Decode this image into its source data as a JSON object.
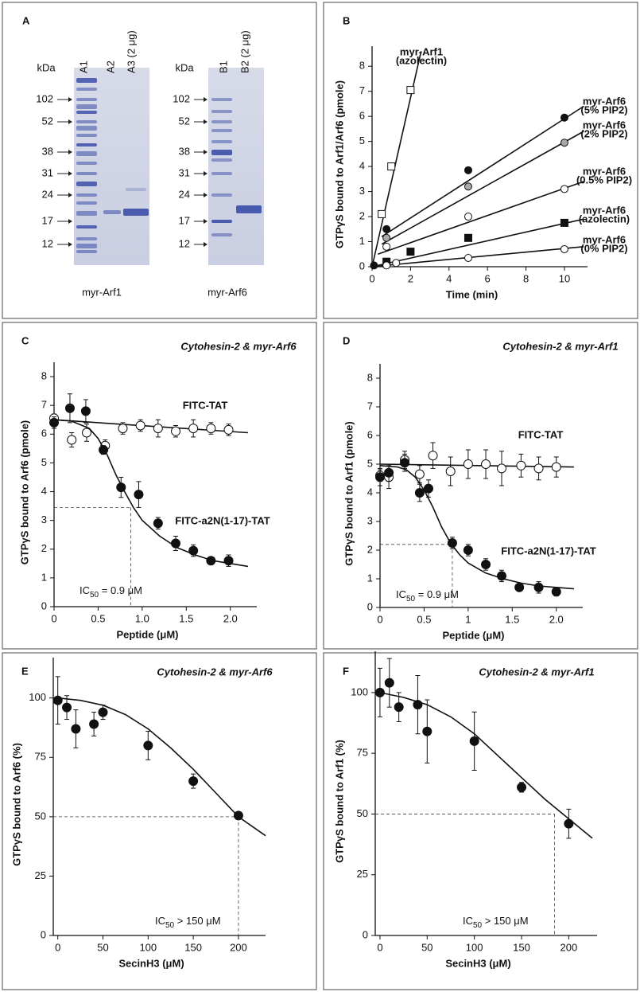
{
  "gel": {
    "label": "A",
    "gels": [
      {
        "unit": "kDa",
        "lanes": [
          "A1",
          "A2",
          "A3 (2 μg)"
        ],
        "markers": [
          102,
          52,
          38,
          31,
          24,
          17,
          12
        ],
        "caption": "myr-Arf1"
      },
      {
        "unit": "kDa",
        "lanes": [
          "B1",
          "B2 (2 μg)"
        ],
        "markers": [
          102,
          52,
          38,
          31,
          24,
          17,
          12
        ],
        "caption": "myr-Arf6"
      }
    ]
  },
  "chart_data": [
    {
      "type": "scatter",
      "label": "B",
      "xlabel": "Time (min)",
      "ylabel": "GTPγS bound to Arf1/Arf6 (pmole)",
      "xlim": [
        0,
        11.2
      ],
      "ylim": [
        0,
        8.8
      ],
      "xticks": [
        0,
        2,
        4,
        6,
        8,
        10
      ],
      "yticks": [
        0,
        1,
        2,
        3,
        4,
        5,
        6,
        7,
        8
      ],
      "series": [
        {
          "name_lines": [
            "myr-Arf1",
            "(azolectin)"
          ],
          "marker": "square",
          "color": "#ffffff",
          "x": [
            0.5,
            1,
            2
          ],
          "values": [
            2.1,
            4.0,
            7.05
          ],
          "fit_x": [
            0,
            2.55
          ],
          "fit_y": [
            0,
            8.6
          ]
        },
        {
          "name_lines": [
            "myr-Arf6",
            "(5% PIP2)"
          ],
          "marker": "circle",
          "color": "#111111",
          "x": [
            0.1,
            0.75,
            5,
            10
          ],
          "values": [
            0.05,
            1.5,
            3.85,
            5.95
          ],
          "fit_x": [
            0.5,
            11
          ],
          "fit_y": [
            1.2,
            6.4
          ]
        },
        {
          "name_lines": [
            "myr-Arf6",
            "(2% PIP2)"
          ],
          "marker": "circle",
          "color": "#a8a8a8",
          "x": [
            0.75,
            5,
            10
          ],
          "values": [
            1.15,
            3.2,
            4.95
          ],
          "fit_x": [
            0.5,
            11
          ],
          "fit_y": [
            0.9,
            5.4
          ]
        },
        {
          "name_lines": [
            "myr-Arf6",
            "(0.5% PIP2)"
          ],
          "marker": "circle",
          "color": "#ffffff",
          "x": [
            0.75,
            5,
            10
          ],
          "values": [
            0.8,
            2.0,
            3.1
          ],
          "fit_x": [
            0.3,
            11
          ],
          "fit_y": [
            0.5,
            3.4
          ]
        },
        {
          "name_lines": [
            "myr-Arf6",
            "(azolectin)"
          ],
          "marker": "square",
          "color": "#111111",
          "x": [
            0.75,
            2,
            5,
            10
          ],
          "values": [
            0.2,
            0.6,
            1.15,
            1.75
          ],
          "fit_x": [
            0,
            11
          ],
          "fit_y": [
            0,
            1.9
          ]
        },
        {
          "name_lines": [
            "myr-Arf6",
            "(0% PIP2)"
          ],
          "marker": "circle",
          "color": "#ffffff",
          "x": [
            0.75,
            1.25,
            5,
            10
          ],
          "values": [
            0.05,
            0.15,
            0.35,
            0.7
          ],
          "fit_x": [
            0,
            11
          ],
          "fit_y": [
            0,
            0.8
          ]
        }
      ]
    },
    {
      "type": "scatter",
      "label": "C",
      "subtitle": "Cytohesin-2  &  myr-Arf6",
      "xlabel": "Peptide (μM)",
      "ylabel": "GTPγS bound to Arf6 (pmole)",
      "xlim": [
        0,
        2.3
      ],
      "ylim": [
        0,
        8.5
      ],
      "xticks": [
        0,
        0.5,
        {
          "value": 1,
          "label": "1.0"
        },
        1.5,
        {
          "value": 2,
          "label": "2.0"
        }
      ],
      "yticks": [
        0,
        1,
        2,
        3,
        4,
        5,
        6,
        7,
        8
      ],
      "series": [
        {
          "name": "FITC-TAT",
          "marker": "circle",
          "color": "#ffffff",
          "x": [
            0,
            0.2,
            0.37,
            0.58,
            0.78,
            0.98,
            1.18,
            1.38,
            1.58,
            1.78,
            1.98
          ],
          "values": [
            6.55,
            5.8,
            6.05,
            5.6,
            6.2,
            6.3,
            6.2,
            6.1,
            6.2,
            6.2,
            6.15
          ],
          "errors": [
            0.15,
            0.25,
            0.3,
            0.2,
            0.2,
            0.2,
            0.3,
            0.2,
            0.3,
            0.2,
            0.2
          ],
          "fit_x": [
            0,
            2.2
          ],
          "fit_y": [
            6.5,
            6.05
          ]
        },
        {
          "name": "FITC-a2N(1-17)-TAT",
          "marker": "circle",
          "color": "#111111",
          "x": [
            0,
            0.18,
            0.36,
            0.56,
            0.76,
            0.96,
            1.18,
            1.38,
            1.58,
            1.78,
            1.98
          ],
          "values": [
            6.4,
            6.9,
            6.8,
            5.45,
            4.15,
            3.9,
            2.9,
            2.2,
            1.95,
            1.6,
            1.6
          ],
          "errors": [
            0.2,
            0.5,
            0.4,
            0.15,
            0.35,
            0.45,
            0.2,
            0.25,
            0.2,
            0.1,
            0.2
          ],
          "fit_x": [
            0,
            0.2,
            0.4,
            0.5,
            0.6,
            0.7,
            0.8,
            0.9,
            1.0,
            1.2,
            1.4,
            1.6,
            1.8,
            2.0,
            2.2
          ],
          "fit_y": [
            6.5,
            6.45,
            6.2,
            5.85,
            5.3,
            4.6,
            4.0,
            3.45,
            3.0,
            2.45,
            2.05,
            1.8,
            1.6,
            1.5,
            1.4
          ]
        }
      ],
      "guide": {
        "x": 0.87,
        "y": 3.45
      },
      "annotation": {
        "text": "IC",
        "sub": "50",
        "rest": " = 0.9 μM"
      }
    },
    {
      "type": "scatter",
      "label": "D",
      "subtitle": "Cytohesin-2  &  myr-Arf1",
      "xlabel": "Peptide (μM)",
      "ylabel": "GTPγS bound to Arf1 (pmole)",
      "xlim": [
        0,
        2.3
      ],
      "ylim": [
        0,
        8.5
      ],
      "xticks": [
        0,
        0.5,
        1,
        1.5,
        {
          "value": 2,
          "label": "2.0"
        }
      ],
      "yticks": [
        0,
        1,
        2,
        3,
        4,
        5,
        6,
        7,
        8
      ],
      "series": [
        {
          "name": "FITC-TAT",
          "marker": "circle",
          "color": "#ffffff",
          "x": [
            0,
            0.1,
            0.28,
            0.45,
            0.6,
            0.8,
            1.0,
            1.2,
            1.38,
            1.6,
            1.8,
            2.0
          ],
          "values": [
            4.6,
            4.55,
            5.15,
            4.65,
            5.3,
            4.75,
            5.0,
            5.0,
            4.85,
            4.95,
            4.85,
            4.9
          ],
          "errors": [
            0.2,
            0.4,
            0.3,
            0.3,
            0.45,
            0.5,
            0.5,
            0.5,
            0.6,
            0.4,
            0.4,
            0.35
          ],
          "fit_x": [
            0,
            2.2
          ],
          "fit_y": [
            5.0,
            4.9
          ]
        },
        {
          "name": "FITC-a2N(1-17)-TAT",
          "marker": "circle",
          "color": "#111111",
          "x": [
            0,
            0.1,
            0.28,
            0.45,
            0.55,
            0.82,
            1.0,
            1.2,
            1.38,
            1.58,
            1.8,
            2.0
          ],
          "values": [
            4.55,
            4.7,
            5.05,
            4.0,
            4.15,
            2.25,
            2.0,
            1.5,
            1.1,
            0.7,
            0.7,
            0.55
          ],
          "errors": [
            0.3,
            0.3,
            0.3,
            0.3,
            0.3,
            0.2,
            0.2,
            0.2,
            0.2,
            0.1,
            0.2,
            0.15
          ],
          "fit_x": [
            0,
            0.2,
            0.3,
            0.4,
            0.5,
            0.6,
            0.7,
            0.8,
            0.9,
            1.0,
            1.2,
            1.4,
            1.6,
            1.8,
            2.0,
            2.2
          ],
          "fit_y": [
            4.95,
            4.9,
            4.8,
            4.55,
            4.1,
            3.5,
            2.8,
            2.25,
            1.85,
            1.55,
            1.2,
            1.0,
            0.85,
            0.75,
            0.7,
            0.65
          ]
        }
      ],
      "guide": {
        "x": 0.82,
        "y": 2.2
      },
      "annotation": {
        "text": "IC",
        "sub": "50",
        "rest": " = 0.9 μM"
      }
    },
    {
      "type": "scatter",
      "label": "E",
      "subtitle": "Cytohesin-2  &  myr-Arf6",
      "xlabel": "SecinH3 (μM)",
      "ylabel": "GTPγS bound to Arf6 (%)",
      "xlim": [
        -5,
        230
      ],
      "ylim": [
        0,
        117
      ],
      "xticks": [
        0,
        50,
        100,
        150,
        200
      ],
      "yticks": [
        0,
        25,
        50,
        75,
        100
      ],
      "series": [
        {
          "marker": "circle",
          "color": "#111111",
          "x": [
            0,
            10,
            20,
            40,
            50,
            100,
            150,
            200
          ],
          "values": [
            99,
            96,
            87,
            89,
            94,
            80,
            65,
            50.5
          ],
          "errors": [
            10,
            5,
            8,
            5,
            3,
            6,
            3,
            0
          ],
          "fit_x": [
            0,
            25,
            50,
            75,
            100,
            125,
            150,
            175,
            200,
            230
          ],
          "fit_y": [
            100,
            99,
            97,
            93,
            87,
            79,
            70,
            60,
            50,
            42
          ]
        }
      ],
      "guide": {
        "x": 200,
        "y": 50
      },
      "annotation": {
        "text": "IC",
        "sub": "50",
        "rest": " > 150 μM"
      }
    },
    {
      "type": "scatter",
      "label": "F",
      "subtitle": "Cytohesin-2  &  myr-Arf1",
      "xlabel": "SecinH3 (μM)",
      "ylabel": "GTPγS bound to Arf1 (%)",
      "xlim": [
        -5,
        230
      ],
      "ylim": [
        0,
        117
      ],
      "xticks": [
        0,
        50,
        100,
        150,
        200
      ],
      "yticks": [
        0,
        25,
        50,
        75,
        100
      ],
      "series": [
        {
          "marker": "circle",
          "color": "#111111",
          "x": [
            0,
            10,
            20,
            40,
            50,
            100,
            150,
            200
          ],
          "values": [
            100,
            104,
            94,
            95,
            84,
            80,
            61,
            46
          ],
          "errors": [
            10,
            10,
            6,
            12,
            13,
            12,
            2,
            6
          ],
          "fit_x": [
            0,
            25,
            50,
            75,
            100,
            125,
            150,
            175,
            200,
            225
          ],
          "fit_y": [
            100,
            98,
            95,
            90,
            83,
            74,
            65,
            56,
            48,
            40
          ]
        }
      ],
      "guide": {
        "x": 185,
        "y": 50
      },
      "annotation": {
        "text": "IC",
        "sub": "50",
        "rest": " > 150 μM"
      }
    }
  ]
}
